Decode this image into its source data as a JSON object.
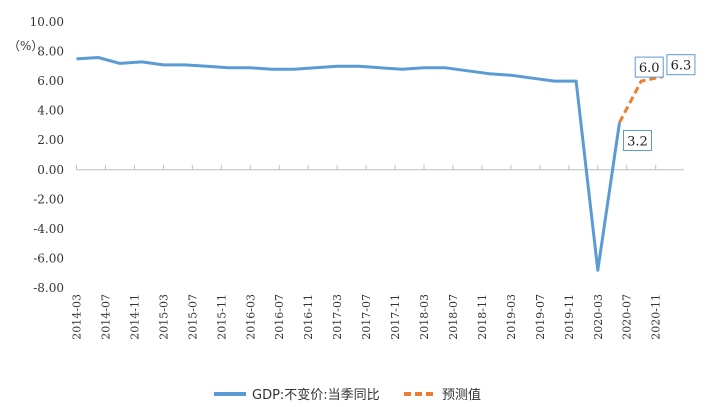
{
  "chart_data": {
    "type": "line",
    "y_unit": "（%）",
    "ylim": [
      -8,
      10
    ],
    "yticks": [
      "10.00",
      "8.00",
      "6.00",
      "4.00",
      "2.00",
      "0.00",
      "-2.00",
      "-4.00",
      "-6.00",
      "-8.00"
    ],
    "x_tick_labels": [
      "2014-03",
      "2014-07",
      "2014-11",
      "2015-03",
      "2015-07",
      "2015-11",
      "2016-03",
      "2016-07",
      "2016-11",
      "2017-03",
      "2017-07",
      "2017-11",
      "2018-03",
      "2018-07",
      "2018-11",
      "2019-03",
      "2019-07",
      "2019-11",
      "2020-03",
      "2020-07",
      "2020-11"
    ],
    "grid": false,
    "legend_position": "bottom",
    "series": [
      {
        "name": "GDP:不变价:当季同比",
        "color": "#5b9bd5",
        "style": "solid",
        "x": [
          "2014-03",
          "2014-06",
          "2014-09",
          "2014-12",
          "2015-03",
          "2015-06",
          "2015-09",
          "2015-12",
          "2016-03",
          "2016-06",
          "2016-09",
          "2016-12",
          "2017-03",
          "2017-06",
          "2017-09",
          "2017-12",
          "2018-03",
          "2018-06",
          "2018-09",
          "2018-12",
          "2019-03",
          "2019-06",
          "2019-09",
          "2019-12",
          "2020-03",
          "2020-06"
        ],
        "values": [
          7.5,
          7.6,
          7.2,
          7.3,
          7.1,
          7.1,
          7.0,
          6.9,
          6.9,
          6.8,
          6.8,
          6.9,
          7.0,
          7.0,
          6.9,
          6.8,
          6.9,
          6.9,
          6.7,
          6.5,
          6.4,
          6.2,
          6.0,
          6.0,
          -6.8,
          3.2
        ]
      },
      {
        "name": "预测值",
        "color": "#ed7d31",
        "style": "dashed",
        "x": [
          "2020-06",
          "2020-09",
          "2020-12"
        ],
        "values": [
          3.2,
          6.0,
          6.3
        ]
      }
    ],
    "data_labels": [
      {
        "x": "2020-06",
        "text": "3.2"
      },
      {
        "x": "2020-09",
        "text": "6.0"
      },
      {
        "x": "2020-12",
        "text": "6.3"
      }
    ]
  }
}
